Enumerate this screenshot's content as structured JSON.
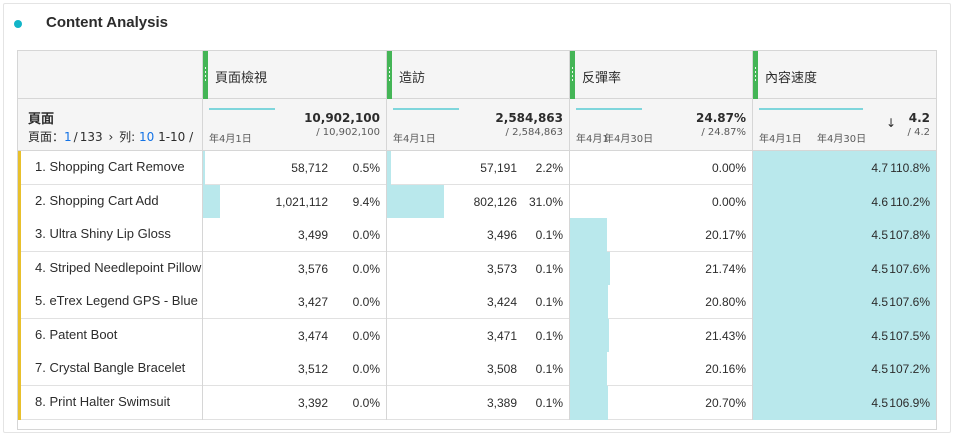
{
  "panel": {
    "title": "Content Analysis",
    "accent": "#12b5c8"
  },
  "table": {
    "metrics": [
      {
        "name": "頁面檢視",
        "total": "10,902,100",
        "sub": "/ 10,902,100",
        "date_start": "年4月1日",
        "date_end": ""
      },
      {
        "name": "造訪",
        "total": "2,584,863",
        "sub": "/ 2,584,863",
        "date_start": "年4月1日",
        "date_end": ""
      },
      {
        "name": "反彈率",
        "total": "24.87%",
        "sub": "/ 24.87%",
        "date_start": "年4月1",
        "date_end": "年4月30日"
      },
      {
        "name": "內容速度",
        "total": "4.2",
        "sub": "/ 4.2",
        "date_start": "年4月1日",
        "date_end": "年4月30日",
        "sort_icon": "arrow-down-icon",
        "sort_glyph": "↓"
      }
    ],
    "dimension": {
      "name": "頁面",
      "page_label": "頁面：",
      "page_current": "1",
      "page_sep": "/",
      "page_total": "133",
      "next_glyph": "›",
      "rows_label": "列:",
      "rows_value": "10",
      "range": "1-10 /"
    },
    "rows": [
      {
        "name": "1. Shopping Cart Remove",
        "pv": "58,712",
        "pv_pct": "0.5%",
        "pv_share": 0.005,
        "visits": "57,191",
        "visits_pct": "2.2%",
        "visits_share": 0.022,
        "bounce": "0.00%",
        "bounce_share": 0.0,
        "vel": "4.7",
        "vel_pct": "110.8%",
        "vel_share": 1.0
      },
      {
        "name": "2. Shopping Cart Add",
        "pv": "1,021,112",
        "pv_pct": "9.4%",
        "pv_share": 0.094,
        "visits": "802,126",
        "visits_pct": "31.0%",
        "visits_share": 0.31,
        "bounce": "0.00%",
        "bounce_share": 0.0,
        "vel": "4.6",
        "vel_pct": "110.2%",
        "vel_share": 1.0
      },
      {
        "name": "3. Ultra Shiny Lip Gloss",
        "pv": "3,499",
        "pv_pct": "0.0%",
        "pv_share": 0.0,
        "visits": "3,496",
        "visits_pct": "0.1%",
        "visits_share": 0.0,
        "bounce": "20.17%",
        "bounce_share": 0.2017,
        "vel": "4.5",
        "vel_pct": "107.8%",
        "vel_share": 1.0
      },
      {
        "name": "4. Striped Needlepoint Pillow",
        "pv": "3,576",
        "pv_pct": "0.0%",
        "pv_share": 0.0,
        "visits": "3,573",
        "visits_pct": "0.1%",
        "visits_share": 0.0,
        "bounce": "21.74%",
        "bounce_share": 0.2174,
        "vel": "4.5",
        "vel_pct": "107.6%",
        "vel_share": 1.0
      },
      {
        "name": "5. eTrex Legend GPS - Blue",
        "pv": "3,427",
        "pv_pct": "0.0%",
        "pv_share": 0.0,
        "visits": "3,424",
        "visits_pct": "0.1%",
        "visits_share": 0.0,
        "bounce": "20.80%",
        "bounce_share": 0.208,
        "vel": "4.5",
        "vel_pct": "107.6%",
        "vel_share": 1.0
      },
      {
        "name": "6. Patent Boot",
        "pv": "3,474",
        "pv_pct": "0.0%",
        "pv_share": 0.0,
        "visits": "3,471",
        "visits_pct": "0.1%",
        "visits_share": 0.0,
        "bounce": "21.43%",
        "bounce_share": 0.2143,
        "vel": "4.5",
        "vel_pct": "107.5%",
        "vel_share": 1.0
      },
      {
        "name": "7. Crystal Bangle Bracelet",
        "pv": "3,512",
        "pv_pct": "0.0%",
        "pv_share": 0.0,
        "visits": "3,508",
        "visits_pct": "0.1%",
        "visits_share": 0.0,
        "bounce": "20.16%",
        "bounce_share": 0.2016,
        "vel": "4.5",
        "vel_pct": "107.2%",
        "vel_share": 1.0
      },
      {
        "name": "8. Print Halter Swimsuit",
        "pv": "3,392",
        "pv_pct": "0.0%",
        "pv_share": 0.0,
        "visits": "3,389",
        "visits_pct": "0.1%",
        "visits_share": 0.0,
        "bounce": "20.70%",
        "bounce_share": 0.207,
        "vel": "4.5",
        "vel_pct": "106.9%",
        "vel_share": 1.0
      }
    ]
  },
  "colors": {
    "grip": "#44b556",
    "bar": "#b9e8ec",
    "row_marker": "#e8c02c",
    "link": "#1473e6"
  }
}
